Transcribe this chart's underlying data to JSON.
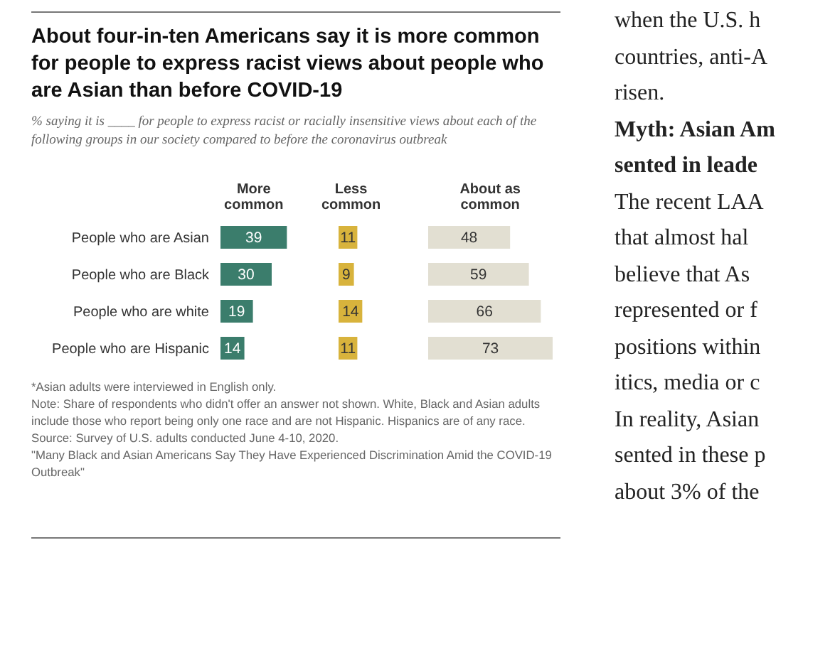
{
  "chart_data": [
    {
      "type": "bar",
      "orientation": "horizontal",
      "title": "About four-in-ten Americans say it is more common for people to express racist views about people who are Asian than before COVID-19",
      "subtitle": "% saying it is ____ for people to express racist or racially insensitive views about each of the following groups in our society compared to before the coronavirus outbreak",
      "categories": [
        "People who are Asian",
        "People who are Black",
        "People who are white",
        "People who are Hispanic"
      ],
      "series": [
        {
          "name": "More common",
          "color": "#3b7d6c",
          "values": [
            39,
            30,
            19,
            14
          ]
        }
      ],
      "data_labels": true,
      "legend": "top",
      "annotations": [
        "*Asian adults were interviewed in English only.",
        "Note: Share of respondents who didn't offer an answer not shown. White, Black and Asian adults include those who report being only one race and are not Hispanic. Hispanics are of any race.",
        "Source: Survey of U.S. adults conducted June 4-10, 2020.",
        "\"Many Black and Asian Americans Say They Have Experienced Discrimination Amid the COVID-19 Outbreak\"",
        "when the U.S. h",
        "countries, anti-A",
        "risen.",
        "Myth: Asian Am",
        "sented in leade",
        "The recent LAA",
        "that almost hal",
        "believe that As",
        "represented or f",
        "positions within",
        "itics, media or c",
        "In reality, Asian",
        "sented in these p",
        "about 3% of the"
      ]
    },
    {
      "type": "bar",
      "orientation": "horizontal",
      "categories": [
        null,
        null,
        null,
        null
      ],
      "tick_labels": false,
      "series": [
        {
          "name": "Less common",
          "color": "#d8b33c",
          "values": [
            11,
            9,
            14,
            11
          ]
        }
      ],
      "data_labels": true,
      "legend": "top"
    },
    {
      "type": "bar",
      "orientation": "horizontal",
      "categories": [
        null,
        null,
        null,
        null
      ],
      "tick_labels": false,
      "series": [
        {
          "name": "About as common",
          "color": "#e2dfd2",
          "values": [
            48,
            59,
            66,
            73
          ]
        }
      ],
      "data_labels": true,
      "legend": "top"
    }
  ]
}
